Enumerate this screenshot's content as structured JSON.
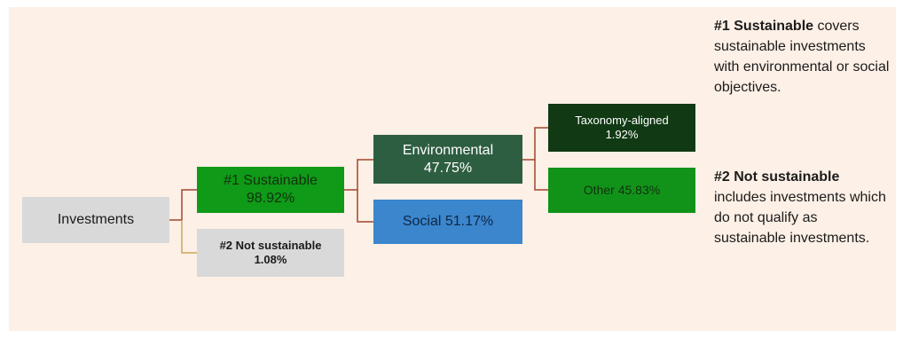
{
  "diagram": {
    "root": {
      "label": "Investments"
    },
    "sustainable": {
      "line1": "#1 Sustainable",
      "line2": "98.92%"
    },
    "not_sustainable": {
      "line1": "#2 Not sustainable",
      "line2": "1.08%"
    },
    "environmental": {
      "line1": "Environmental",
      "line2": "47.75%"
    },
    "social": {
      "label": "Social 51.17%"
    },
    "taxonomy_aligned": {
      "line1": "Taxonomy-aligned",
      "line2": "1.92%"
    },
    "other": {
      "label": "Other 45.83%"
    }
  },
  "notes": [
    {
      "lead": "#1 Sustainable",
      "text": "covers sustainable investments with environmental or social objectives."
    },
    {
      "lead": "#2 Not sustainable",
      "text": "includes investments which do not qualify as sustainable investments."
    }
  ],
  "colors": {
    "panel_background": "#fdf0e6",
    "investments": "#d9d9d9",
    "sustainable": "#0f9a17",
    "not_sustainable": "#d9d9d9",
    "environmental": "#2e5e42",
    "social": "#3b86cd",
    "taxonomy_aligned": "#113a14",
    "other": "#11931a",
    "connector_sustainable": "#a2452b",
    "connector_not_sustainable": "#c9a65c"
  }
}
